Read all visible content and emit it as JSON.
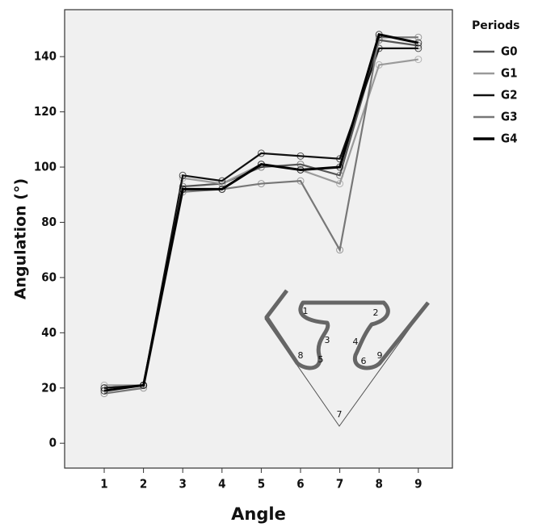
{
  "chart_data": {
    "type": "line",
    "y_label": "Angulation (°)",
    "x_label": "Angle",
    "legend_title": "Periods",
    "legend_position": "right",
    "categories": [
      "1",
      "2",
      "3",
      "4",
      "5",
      "6",
      "7",
      "8",
      "9"
    ],
    "series": [
      {
        "name": "G0",
        "color": "#555555",
        "values": [
          20,
          21,
          93,
          94,
          100,
          101,
          97,
          146,
          144
        ]
      },
      {
        "name": "G1",
        "color": "#9a9a9a",
        "values": [
          21,
          21,
          96,
          94,
          101,
          99,
          94,
          137,
          139
        ]
      },
      {
        "name": "G2",
        "color": "#111111",
        "values": [
          20,
          21,
          97,
          95,
          105,
          104,
          103,
          143,
          143
        ]
      },
      {
        "name": "G3",
        "color": "#777777",
        "values": [
          18,
          20,
          91,
          92,
          94,
          95,
          70,
          147,
          147
        ]
      },
      {
        "name": "G4",
        "color": "#000000",
        "values": [
          19,
          21,
          92,
          92,
          101,
          99,
          100,
          148,
          145
        ]
      }
    ],
    "ylim": [
      -9,
      157
    ],
    "yticks": [
      0,
      20,
      40,
      60,
      80,
      100,
      120,
      140
    ],
    "inset_labels": [
      "1",
      "2",
      "3",
      "4",
      "5",
      "6",
      "7",
      "8",
      "9"
    ]
  }
}
